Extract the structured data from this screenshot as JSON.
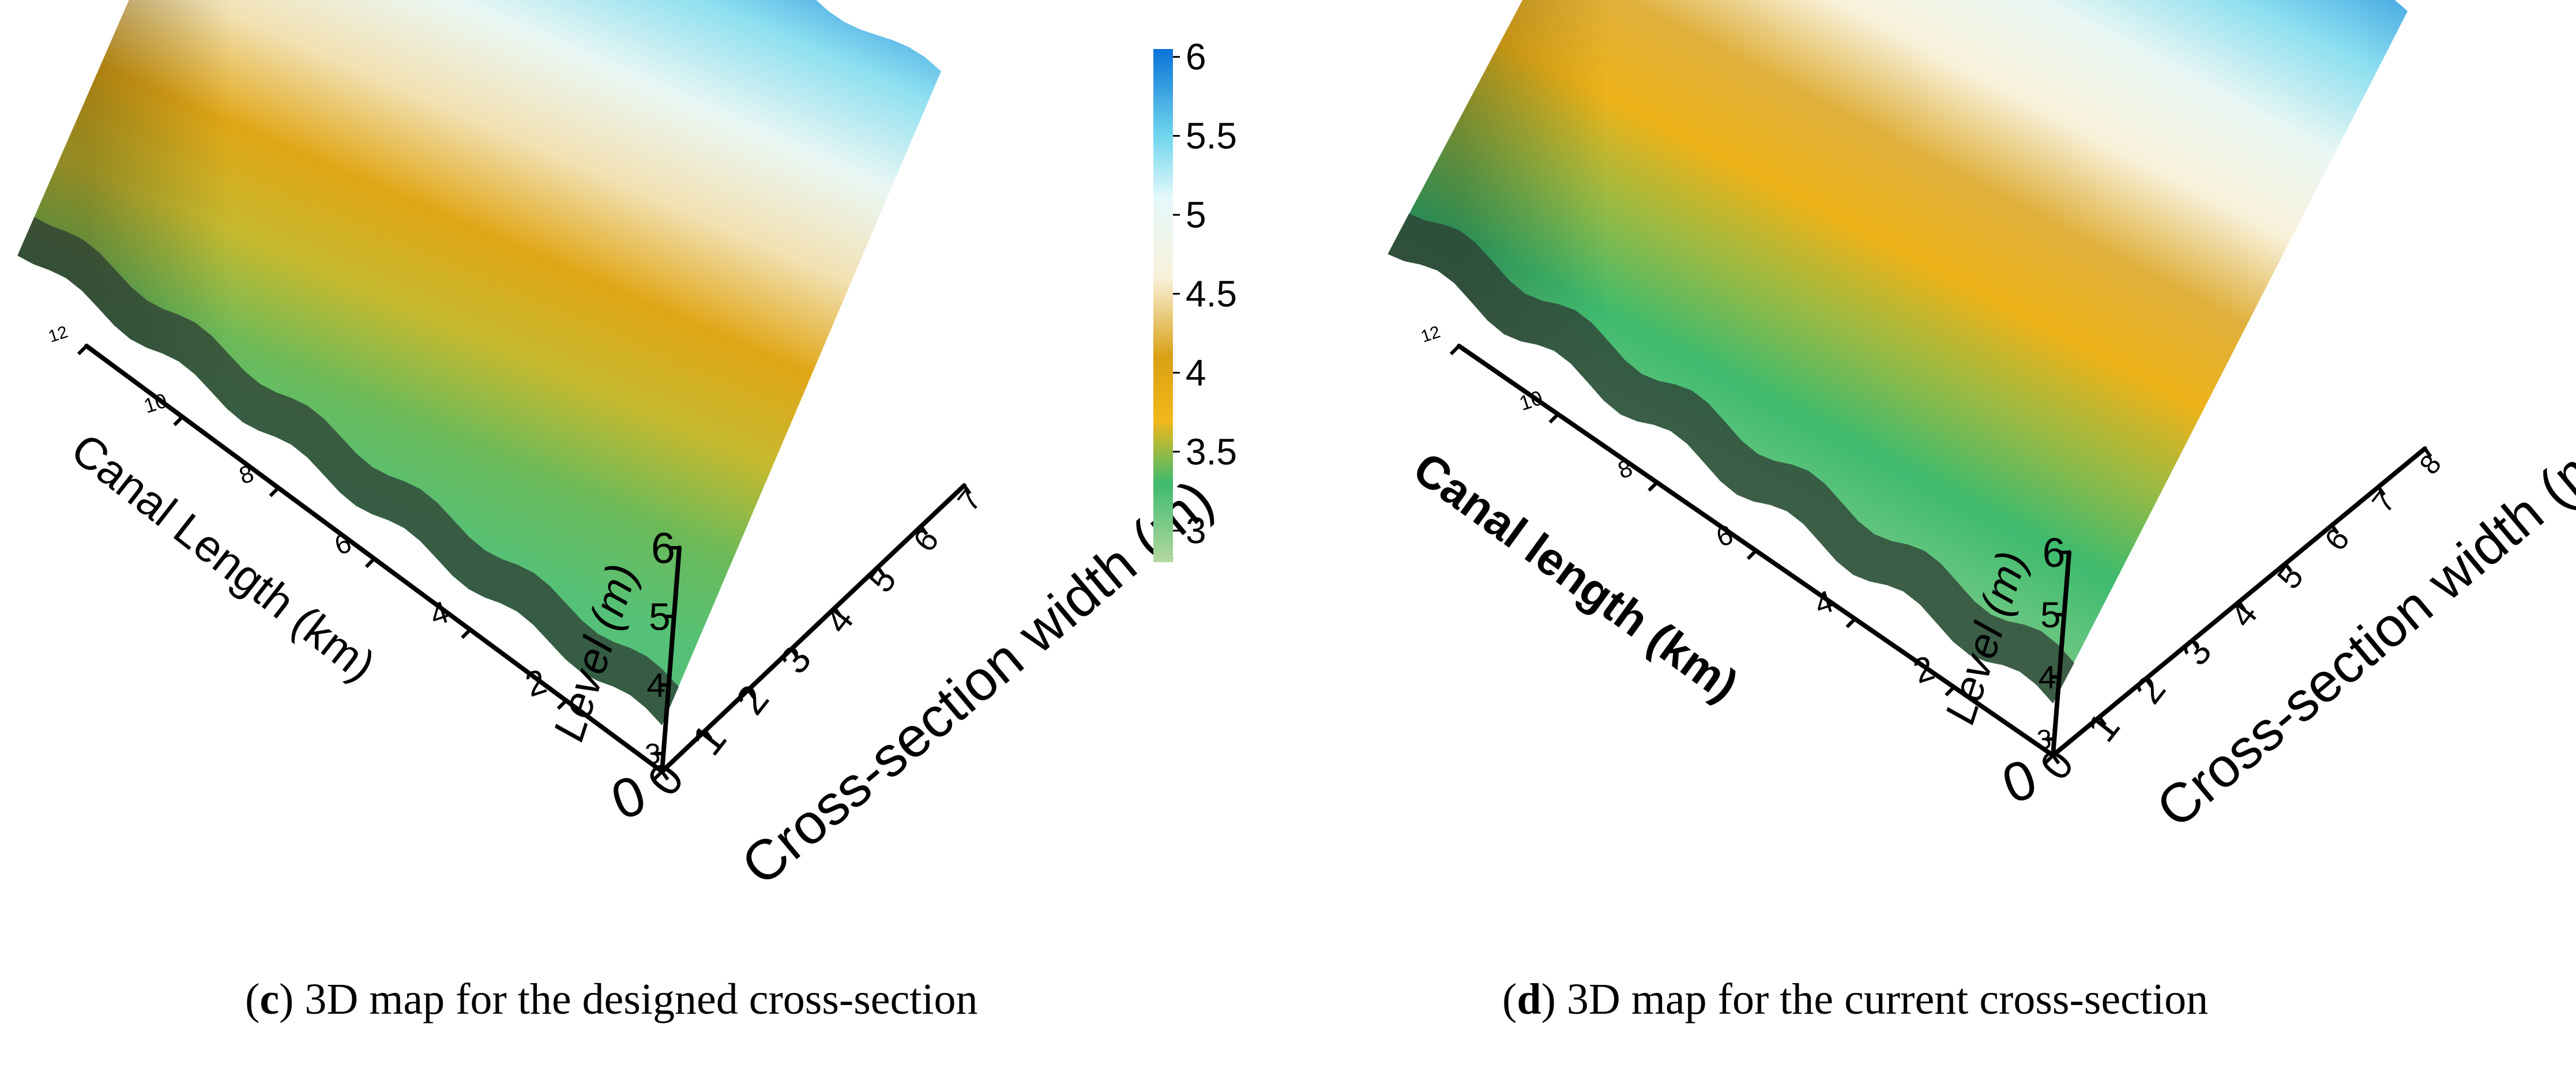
{
  "chart_data": [
    {
      "type": "surface3d",
      "panel_letter": "c",
      "caption_text": "3D map for the designed cross-section",
      "x_axis": {
        "label": "Canal Length (km)",
        "ticks": [
          "0",
          "2",
          "4",
          "6",
          "8",
          "10",
          "12"
        ],
        "range": [
          0,
          12
        ]
      },
      "y_axis": {
        "label": "Cross-section width (m)",
        "ticks": [
          "0",
          "1",
          "2",
          "3",
          "4",
          "5",
          "6",
          "7"
        ],
        "range": [
          0,
          7
        ]
      },
      "z_axis": {
        "label": "Level (m)",
        "ticks": [
          "3",
          "4",
          "5",
          "6"
        ],
        "range": [
          3,
          6
        ]
      },
      "color_bands_across_width": [
        {
          "width_m": 0,
          "level_m": 3.2
        },
        {
          "width_m": 1,
          "level_m": 3.4
        },
        {
          "width_m": 2,
          "level_m": 3.6
        },
        {
          "width_m": 3,
          "level_m": 4.0
        },
        {
          "width_m": 4,
          "level_m": 4.5
        },
        {
          "width_m": 5,
          "level_m": 5.0
        },
        {
          "width_m": 6,
          "level_m": 5.4
        },
        {
          "width_m": 7,
          "level_m": 5.9
        }
      ]
    },
    {
      "type": "surface3d",
      "panel_letter": "d",
      "caption_text": "3D map for the current cross-section",
      "x_axis": {
        "label": "Canal length (km)",
        "ticks": [
          "0",
          "2",
          "4",
          "6",
          "8",
          "10",
          "12"
        ],
        "range": [
          0,
          12
        ]
      },
      "y_axis": {
        "label": "Cross-section width (m)",
        "ticks": [
          "0",
          "1",
          "2",
          "3",
          "4",
          "5",
          "6",
          "7",
          "8"
        ],
        "range": [
          0,
          8
        ]
      },
      "z_axis": {
        "label": "Level (m)",
        "ticks": [
          "3",
          "4",
          "5",
          "6"
        ],
        "range": [
          3,
          6
        ]
      },
      "color_bands_across_width": [
        {
          "width_m": 0,
          "level_m": 3.1
        },
        {
          "width_m": 1,
          "level_m": 3.3
        },
        {
          "width_m": 2,
          "level_m": 3.5
        },
        {
          "width_m": 3,
          "level_m": 3.8
        },
        {
          "width_m": 4,
          "level_m": 4.2
        },
        {
          "width_m": 5,
          "level_m": 4.6
        },
        {
          "width_m": 6,
          "level_m": 5.0
        },
        {
          "width_m": 7,
          "level_m": 5.4
        },
        {
          "width_m": 8,
          "level_m": 5.8
        }
      ]
    }
  ],
  "colorbar": {
    "ticks": [
      "3",
      "3.5",
      "4",
      "4.5",
      "5",
      "5.5",
      "6"
    ],
    "range": [
      2.8,
      6.05
    ],
    "stops": [
      {
        "value": 2.8,
        "color": "#b5d8a0"
      },
      {
        "value": 3.3,
        "color": "#3dbb6e"
      },
      {
        "value": 3.7,
        "color": "#f3b81a"
      },
      {
        "value": 4.1,
        "color": "#d9a015"
      },
      {
        "value": 4.6,
        "color": "#f8f1da"
      },
      {
        "value": 5.1,
        "color": "#e6f9fb"
      },
      {
        "value": 5.5,
        "color": "#6fd6ec"
      },
      {
        "value": 6.05,
        "color": "#0a72d8"
      }
    ]
  }
}
